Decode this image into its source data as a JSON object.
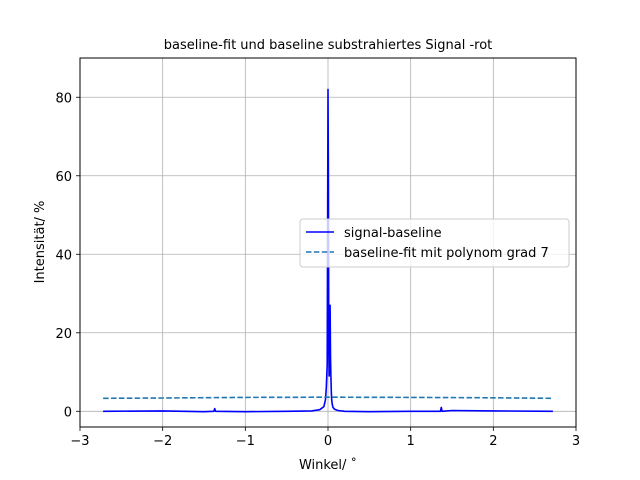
{
  "chart_data": {
    "type": "line",
    "title": "baseline-fit und baseline substrahiertes Signal -rot",
    "xlabel": "Winkel/ ˚",
    "ylabel": "Intensität/ %",
    "xlim": [
      -3,
      3
    ],
    "ylim": [
      -4,
      90
    ],
    "xticks": [
      -3,
      -2,
      -1,
      0,
      1,
      2,
      3
    ],
    "xtick_labels": [
      "−3",
      "−2",
      "−1",
      "0",
      "1",
      "2",
      "3"
    ],
    "yticks": [
      0,
      20,
      40,
      60,
      80
    ],
    "ytick_labels": [
      "0",
      "20",
      "40",
      "60",
      "80"
    ],
    "grid": true,
    "legend_position": "center-right",
    "series": [
      {
        "name": "signal-baseline",
        "color": "#0000ff",
        "style": "solid",
        "x": [
          -2.72,
          -2.0,
          -1.5,
          -1.38,
          -1.37,
          -1.36,
          -1.0,
          -0.5,
          -0.2,
          -0.1,
          -0.05,
          -0.03,
          -0.02,
          -0.01,
          0.0,
          0.005,
          0.01,
          0.015,
          0.02,
          0.025,
          0.03,
          0.035,
          0.04,
          0.045,
          0.05,
          0.06,
          0.08,
          0.12,
          0.2,
          0.5,
          1.0,
          1.36,
          1.37,
          1.38,
          1.5,
          2.0,
          2.72
        ],
        "y": [
          0.0,
          0.1,
          -0.1,
          0.0,
          0.7,
          0.0,
          -0.1,
          0.0,
          0.1,
          0.4,
          1.2,
          3.0,
          6.0,
          12.0,
          82.0,
          60.0,
          15.0,
          9.0,
          20.0,
          27.0,
          14.0,
          9.0,
          5.0,
          3.0,
          2.0,
          1.0,
          0.5,
          0.2,
          0.0,
          -0.1,
          0.0,
          0.0,
          1.0,
          0.0,
          0.2,
          0.1,
          0.0
        ]
      },
      {
        "name": "baseline-fit mit polynom grad 7",
        "color": "#1f77b4",
        "style": "dashed",
        "x": [
          -2.72,
          -2.0,
          -1.0,
          0.0,
          1.0,
          2.0,
          2.72
        ],
        "y": [
          3.3,
          3.4,
          3.55,
          3.6,
          3.55,
          3.45,
          3.3
        ]
      }
    ]
  }
}
